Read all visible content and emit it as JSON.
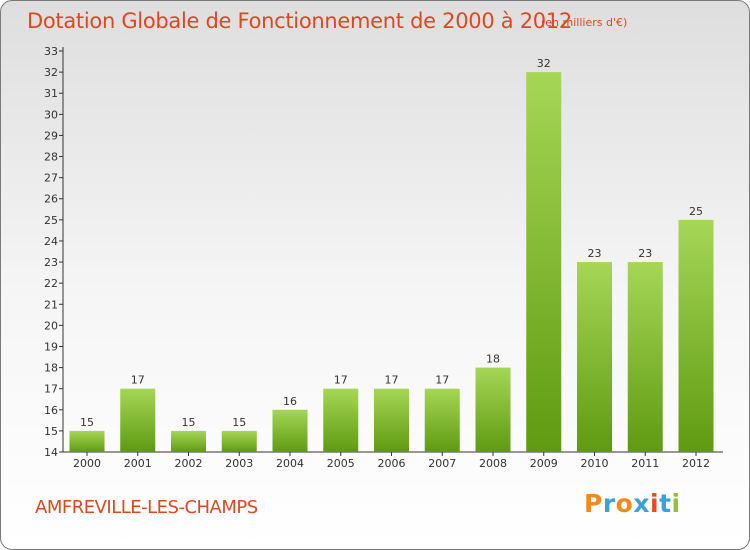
{
  "header": {
    "title": "Dotation Globale de Fonctionnement de 2000 à 2012",
    "subtitle": "(en milliers d'€)"
  },
  "footer": {
    "commune": "AMFREVILLE-LES-CHAMPS",
    "logo": {
      "text": "Proxiti",
      "letters": [
        "P",
        "r",
        "o",
        "x",
        "i",
        "t",
        "i"
      ],
      "colors": [
        "#f08a1e",
        "#3aa2d8",
        "#f08a1e",
        "#3aa2d8",
        "#e94a1f",
        "#3aa2d8",
        "#8fc33a"
      ]
    }
  },
  "colors": {
    "title": "#e0471e",
    "bar_light": "#a6d656",
    "bar_dark": "#5f9a12",
    "axis": "#333333"
  },
  "chart_data": {
    "type": "bar",
    "title": "Dotation Globale de Fonctionnement de 2000 à 2012",
    "subtitle": "(en milliers d'€)",
    "xlabel": "",
    "ylabel": "",
    "categories": [
      "2000",
      "2001",
      "2002",
      "2003",
      "2004",
      "2005",
      "2006",
      "2007",
      "2008",
      "2009",
      "2010",
      "2011",
      "2012"
    ],
    "values": [
      15,
      17,
      15,
      15,
      16,
      17,
      17,
      17,
      18,
      32,
      23,
      23,
      25
    ],
    "ylim": [
      14,
      33
    ],
    "yticks": [
      14,
      15,
      16,
      17,
      18,
      19,
      20,
      21,
      22,
      23,
      24,
      25,
      26,
      27,
      28,
      29,
      30,
      31,
      32,
      33
    ],
    "grid": false,
    "legend": "none"
  }
}
